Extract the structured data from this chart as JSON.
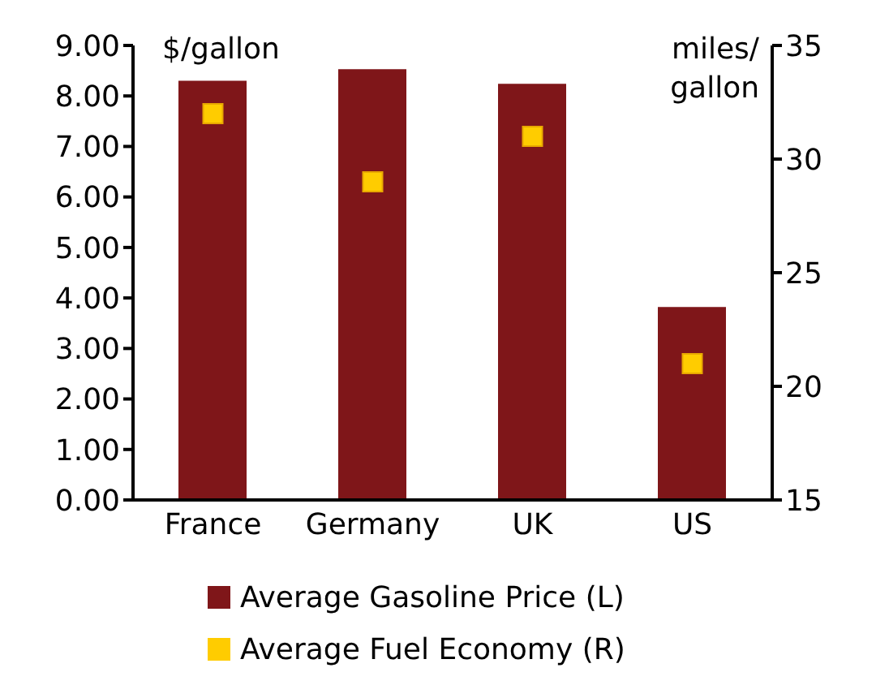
{
  "chart_data": {
    "type": "bar",
    "ylabel": "$/gallon",
    "y2label": "miles/ gallon",
    "categories": [
      "France",
      "Germany",
      "UK",
      "US"
    ],
    "series": [
      {
        "name": "Average Gasoline Price (L)",
        "color": "#7f1619",
        "values": [
          8.3,
          8.53,
          8.24,
          3.82
        ]
      },
      {
        "name": "Average Fuel Economy (R)",
        "type": "scatter",
        "axis": "y2",
        "color": "#ffcc00",
        "values": [
          32,
          29,
          31,
          21
        ]
      }
    ],
    "ylim": [
      0,
      9
    ],
    "yticks": [
      {
        "value": 0,
        "label": "0.00"
      },
      {
        "value": 1,
        "label": "1.00"
      },
      {
        "value": 2,
        "label": "2.00"
      },
      {
        "value": 3,
        "label": "3.00"
      },
      {
        "value": 4,
        "label": "4.00"
      },
      {
        "value": 5,
        "label": "5.00"
      },
      {
        "value": 6,
        "label": "6.00"
      },
      {
        "value": 7,
        "label": "7.00"
      },
      {
        "value": 8,
        "label": "8.00"
      },
      {
        "value": 9,
        "label": "9.00"
      }
    ],
    "y2lim": [
      15,
      35
    ],
    "y2ticks": [
      15,
      20,
      25,
      30,
      35
    ],
    "marker": "square",
    "legend": "bottom"
  }
}
